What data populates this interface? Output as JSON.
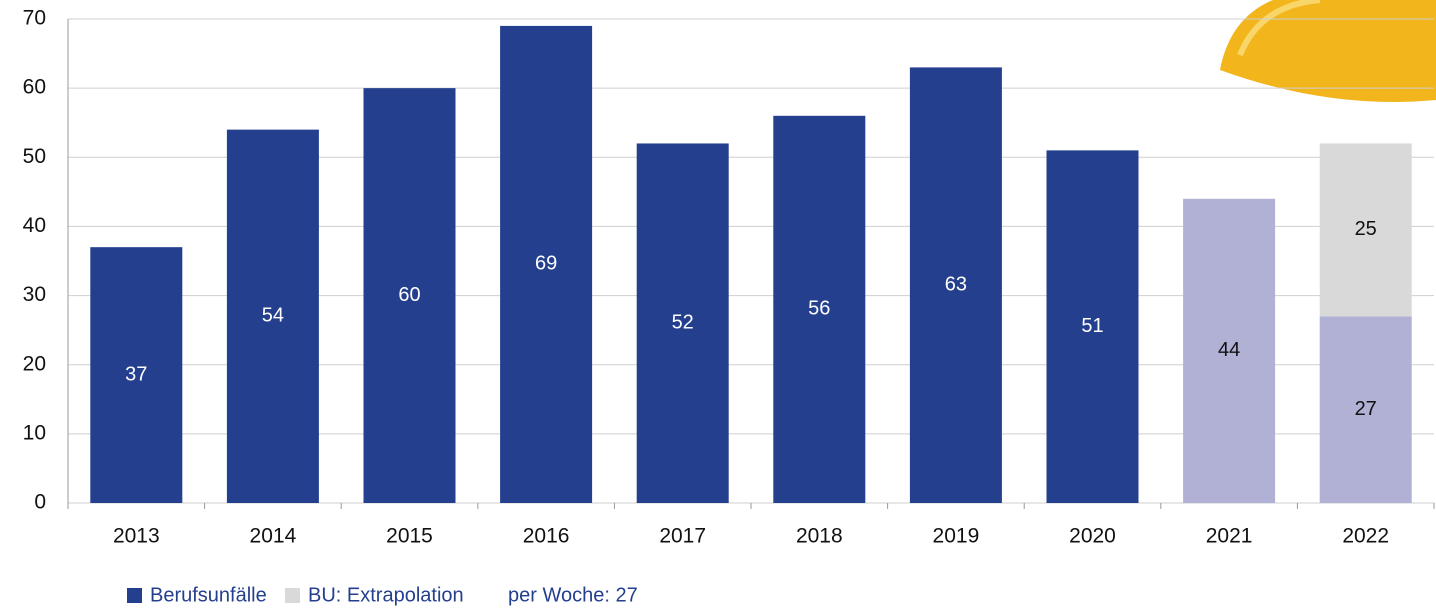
{
  "chart_data": {
    "type": "stacked_bar",
    "categories": [
      "2013",
      "2014",
      "2015",
      "2016",
      "2017",
      "2018",
      "2019",
      "2020",
      "2021",
      "2022"
    ],
    "series": [
      {
        "name": "Berufsunfälle",
        "color": "#253f8f",
        "point_colors": [
          "#253f8f",
          "#253f8f",
          "#253f8f",
          "#253f8f",
          "#253f8f",
          "#253f8f",
          "#253f8f",
          "#253f8f",
          "#b1b0d5",
          "#b1b0d5"
        ],
        "values": [
          37,
          54,
          60,
          69,
          52,
          56,
          63,
          51,
          44,
          27
        ]
      },
      {
        "name": "BU: Extrapolation",
        "color": "#d9d9d9",
        "values": [
          null,
          null,
          null,
          null,
          null,
          null,
          null,
          null,
          null,
          25
        ]
      }
    ],
    "annotation": "per Woche: 27",
    "ylim": [
      0,
      70
    ],
    "yticks": [
      0,
      10,
      20,
      30,
      40,
      50,
      60,
      70
    ],
    "grid": true
  }
}
